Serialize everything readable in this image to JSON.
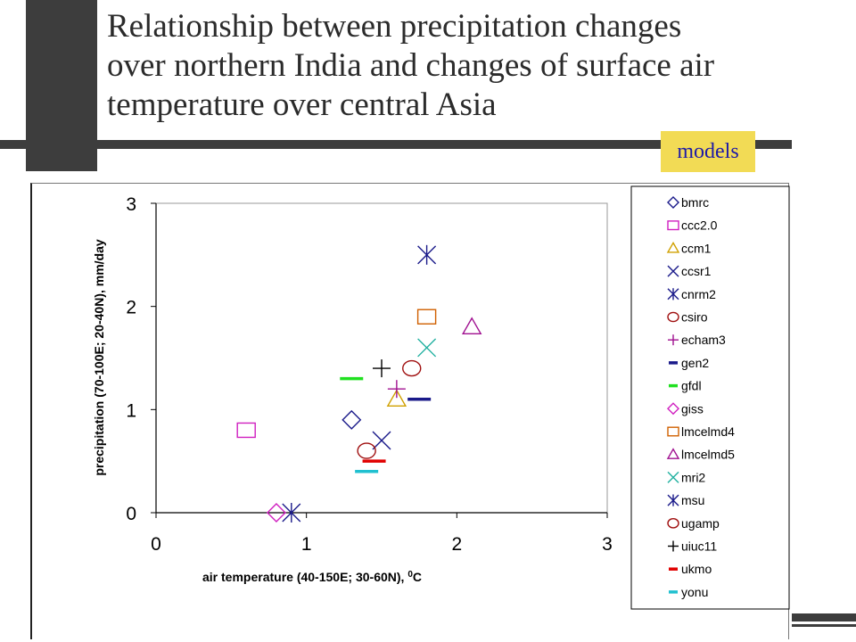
{
  "slide": {
    "title_lines": [
      "Relationship between precipitation changes",
      "over northern India and changes of surface air",
      "temperature over central Asia"
    ],
    "badge": "models"
  },
  "chart_data": {
    "type": "scatter",
    "xlabel_main": "air temperature (40-150E; 30-60N), ",
    "xlabel_unit_sup": "0",
    "xlabel_unit": "C",
    "ylabel": "precipitation (70-100E; 20-40N), mm/day",
    "xlim": [
      0,
      3
    ],
    "ylim": [
      0,
      3
    ],
    "x_ticks": [
      "0",
      "1",
      "2",
      "3"
    ],
    "y_ticks": [
      "0",
      "1",
      "2",
      "3"
    ],
    "grid": false,
    "legend_position": "right",
    "series": [
      {
        "name": "bmrc",
        "marker": "diamond",
        "color": "#1a1a8a",
        "x": 1.3,
        "y": 0.9
      },
      {
        "name": "ccc2.0",
        "marker": "square",
        "color": "#d020c0",
        "x": 0.6,
        "y": 0.8
      },
      {
        "name": "ccm1",
        "marker": "triangle",
        "color": "#d0a000",
        "x": 1.6,
        "y": 1.1
      },
      {
        "name": "ccsr1",
        "marker": "x",
        "color": "#1a1a8a",
        "x": 1.5,
        "y": 0.7
      },
      {
        "name": "cnrm2",
        "marker": "asterisk",
        "color": "#1a1a8a",
        "x": 1.8,
        "y": 2.5
      },
      {
        "name": "csiro",
        "marker": "circle",
        "color": "#a01010",
        "x": 1.7,
        "y": 1.4
      },
      {
        "name": "echam3",
        "marker": "plus",
        "color": "#a01090",
        "x": 1.6,
        "y": 1.2
      },
      {
        "name": "gen2",
        "marker": "dash",
        "color": "#1a1a8a",
        "x": 1.75,
        "y": 1.1
      },
      {
        "name": "gfdl",
        "marker": "dash",
        "color": "#20e020",
        "x": 1.3,
        "y": 1.3
      },
      {
        "name": "giss",
        "marker": "diamond",
        "color": "#d020c0",
        "x": 0.8,
        "y": 0.0
      },
      {
        "name": "lmcelmd4",
        "marker": "square",
        "color": "#d06000",
        "x": 1.8,
        "y": 1.9
      },
      {
        "name": "lmcelmd5",
        "marker": "triangle",
        "color": "#a01090",
        "x": 2.1,
        "y": 1.8
      },
      {
        "name": "mri2",
        "marker": "x",
        "color": "#20b0a0",
        "x": 1.8,
        "y": 1.6
      },
      {
        "name": "msu",
        "marker": "asterisk",
        "color": "#1a1a8a",
        "x": 0.9,
        "y": 0.0
      },
      {
        "name": "ugamp",
        "marker": "circle",
        "color": "#a01010",
        "x": 1.4,
        "y": 0.6
      },
      {
        "name": "uiuc11",
        "marker": "plus",
        "color": "#000000",
        "x": 1.5,
        "y": 1.4
      },
      {
        "name": "ukmo",
        "marker": "dash",
        "color": "#e00000",
        "x": 1.45,
        "y": 0.5
      },
      {
        "name": "yonu",
        "marker": "dash",
        "color": "#20c0d0",
        "x": 1.4,
        "y": 0.4
      }
    ]
  }
}
